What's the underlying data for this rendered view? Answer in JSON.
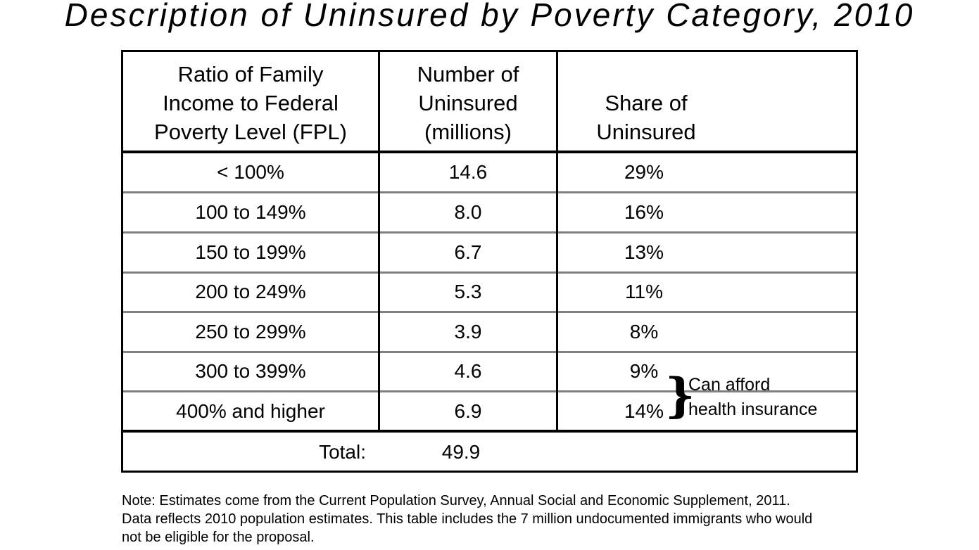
{
  "title": "Description of Uninsured by Poverty Category, 2010",
  "table": {
    "headers": {
      "col1": [
        "Ratio of Family",
        "Income to Federal",
        "Poverty Level (FPL)"
      ],
      "col2": [
        "Number of",
        "Uninsured",
        "(millions)"
      ],
      "col3": [
        "Share of",
        "Uninsured"
      ]
    },
    "rows": [
      {
        "ratio": "< 100%",
        "number": "14.6",
        "share": "29%"
      },
      {
        "ratio": "100 to 149%",
        "number": "8.0",
        "share": "16%"
      },
      {
        "ratio": "150 to 199%",
        "number": "6.7",
        "share": "13%"
      },
      {
        "ratio": "200 to 249%",
        "number": "5.3",
        "share": "11%"
      },
      {
        "ratio": "250 to 299%",
        "number": "3.9",
        "share": "8%"
      },
      {
        "ratio": "300 to 399%",
        "number": "4.6",
        "share": "9%"
      },
      {
        "ratio": "400% and higher",
        "number": "6.9",
        "share": "14%"
      }
    ],
    "total_label": "Total:",
    "total_value": "49.9",
    "annotation": [
      "Can afford",
      "health insurance"
    ]
  },
  "footnote": [
    "Note: Estimates come from the Current Population Survey, Annual Social and Economic Supplement, 2011.",
    "Data reflects 2010 population estimates. This table includes the 7 million undocumented immigrants who would",
    "not be eligible for the proposal."
  ]
}
